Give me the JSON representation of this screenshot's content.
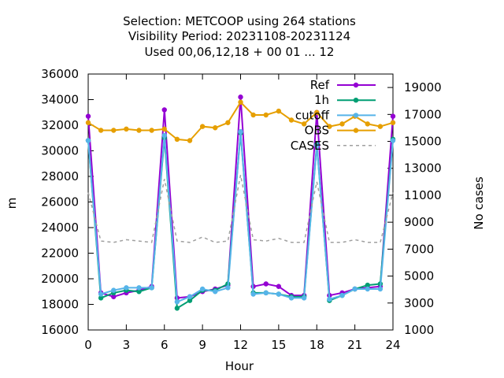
{
  "chart_data": {
    "type": "line",
    "title_lines": [
      "Selection: METCOOP using   264 stations",
      "Visibility   Period: 20231108-20231124",
      "Used  00,06,12,18 + 00 01 ... 12"
    ],
    "xlabel": "Hour",
    "ylabel": "m",
    "y2label": "No cases",
    "xlim": [
      0,
      24
    ],
    "ylim": [
      16000,
      36000
    ],
    "y2lim": [
      1000,
      20000
    ],
    "xticks": [
      0,
      3,
      6,
      9,
      12,
      15,
      18,
      21,
      24
    ],
    "yticks": [
      16000,
      18000,
      20000,
      22000,
      24000,
      26000,
      28000,
      30000,
      32000,
      34000,
      36000
    ],
    "y2ticks": [
      1000,
      3000,
      5000,
      7000,
      9000,
      11000,
      13000,
      15000,
      17000,
      19000
    ],
    "x": [
      0,
      1,
      2,
      3,
      4,
      5,
      6,
      7,
      8,
      9,
      10,
      11,
      12,
      13,
      14,
      15,
      16,
      17,
      18,
      19,
      20,
      21,
      22,
      23,
      24
    ],
    "legend_position": "top-right",
    "series": [
      {
        "name": "Ref",
        "color": "#9400d3",
        "marker": "filled-circle",
        "axis": "y",
        "values": [
          32700,
          18900,
          18600,
          18900,
          19100,
          19400,
          33200,
          18500,
          18600,
          19000,
          19200,
          19500,
          34200,
          19400,
          19600,
          19400,
          18700,
          18700,
          33000,
          18700,
          18900,
          19200,
          19300,
          19400,
          32700
        ]
      },
      {
        "name": "1h",
        "color": "#009e73",
        "marker": "filled-circle",
        "axis": "y",
        "values": [
          30800,
          18500,
          18900,
          19100,
          19000,
          19300,
          31000,
          17700,
          18300,
          19100,
          19100,
          19600,
          31400,
          18900,
          18900,
          18800,
          18600,
          18600,
          30500,
          18300,
          18700,
          19200,
          19500,
          19600,
          30900
        ]
      },
      {
        "name": "cutoff",
        "color": "#56b4e9",
        "marker": "filled-circle",
        "axis": "y",
        "values": [
          30800,
          18800,
          19100,
          19300,
          19300,
          19300,
          31200,
          18200,
          18600,
          19200,
          19000,
          19300,
          31500,
          18800,
          18900,
          18800,
          18500,
          18500,
          30400,
          18400,
          18700,
          19200,
          19200,
          19200,
          30800
        ]
      },
      {
        "name": "OBS",
        "color": "#e69f00",
        "marker": "filled-circle",
        "axis": "y",
        "values": [
          32200,
          31600,
          31600,
          31700,
          31600,
          31600,
          31700,
          30900,
          30800,
          31900,
          31800,
          32200,
          33800,
          32800,
          32800,
          33100,
          32400,
          32100,
          33000,
          31900,
          32100,
          32700,
          32100,
          31900,
          32200
        ]
      },
      {
        "name": "CASES",
        "color": "#a0a0a0",
        "marker": "none",
        "dash": "dashed",
        "axis": "y2",
        "values": [
          11200,
          7600,
          7500,
          7700,
          7600,
          7500,
          12200,
          7600,
          7500,
          7900,
          7500,
          7600,
          12500,
          7700,
          7600,
          7800,
          7500,
          7500,
          12000,
          7500,
          7500,
          7700,
          7500,
          7500,
          11200
        ]
      }
    ]
  }
}
